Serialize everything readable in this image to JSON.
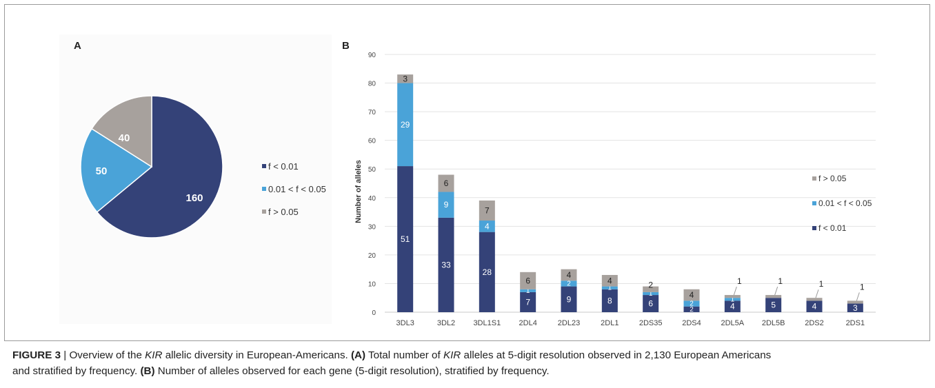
{
  "colors": {
    "f_lt_001": "#344278",
    "f_mid": "#4aa3d8",
    "f_gt_005": "#a7a19d"
  },
  "panel_a": {
    "label": "A"
  },
  "panel_b": {
    "label": "B"
  },
  "chart_data": [
    {
      "type": "pie",
      "categories": [
        "f < 0.01",
        "0.01 < f < 0.05",
        "f > 0.05"
      ],
      "values": [
        160,
        50,
        40
      ],
      "data_labels": [
        "160",
        "50",
        "40"
      ],
      "legend": [
        "f < 0.01",
        "0.01 < f < 0.05",
        "f > 0.05"
      ],
      "legend_position": "right"
    },
    {
      "type": "bar",
      "stacked": true,
      "categories": [
        "3DL3",
        "3DL2",
        "3DL1S1",
        "2DL4",
        "2DL23",
        "2DL1",
        "2DS35",
        "2DS4",
        "2DL5A",
        "2DL5B",
        "2DS2",
        "2DS1"
      ],
      "series": [
        {
          "name": "f < 0.01",
          "values": [
            51,
            33,
            28,
            7,
            9,
            8,
            6,
            2,
            4,
            5,
            4,
            3
          ]
        },
        {
          "name": "0.01 < f < 0.05",
          "values": [
            29,
            9,
            4,
            1,
            2,
            1,
            1,
            2,
            1,
            0,
            0,
            0
          ]
        },
        {
          "name": "f > 0.05",
          "values": [
            3,
            6,
            7,
            6,
            4,
            4,
            2,
            4,
            1,
            1,
            1,
            1
          ]
        }
      ],
      "ylabel": "Number of alleles",
      "xlabel": "",
      "ylim": [
        0,
        90
      ],
      "yticks": [
        "0",
        "10",
        "20",
        "30",
        "40",
        "50",
        "60",
        "70",
        "80",
        "90"
      ],
      "grid": true,
      "legend": [
        "f > 0.05",
        "0.01 < f < 0.05",
        "f < 0.01"
      ],
      "legend_position": "right"
    }
  ],
  "caption": {
    "figure_label": "FIGURE 3",
    "separator": " | ",
    "l1_a": "Overview of the ",
    "l1_kir": "KIR",
    "l1_b": " allelic diversity in European-Americans. ",
    "l1_a_ref": "(A)",
    "l1_c": " Total number of ",
    "l1_kir2": "KIR",
    "l1_d": " alleles at 5-digit resolution observed in 2,130 European Americans",
    "l2_a": "and stratified by frequency. ",
    "l2_b_ref": "(B)",
    "l2_b": " Number of alleles observed for each gene (5-digit resolution), stratified by frequency."
  }
}
